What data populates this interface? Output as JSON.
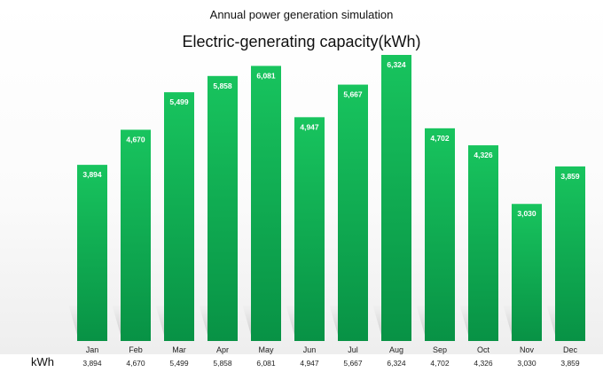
{
  "chart_data": {
    "type": "bar",
    "suptitle": "Annual power generation simulation",
    "title": "Electric-generating capacity(kWh)",
    "categories": [
      "Jan",
      "Feb",
      "Mar",
      "Apr",
      "May",
      "Jun",
      "Jul",
      "Aug",
      "Sep",
      "Oct",
      "Nov",
      "Dec"
    ],
    "values": [
      3894,
      4670,
      5499,
      5858,
      6081,
      4947,
      5667,
      6324,
      4702,
      4326,
      3030,
      3859
    ],
    "value_labels": [
      "3,894",
      "4,670",
      "5,499",
      "5,858",
      "6,081",
      "4,947",
      "5,667",
      "6,324",
      "4,702",
      "4,326",
      "3,030",
      "3,859"
    ],
    "table_unit": "kWh",
    "ylim": [
      0,
      6500
    ],
    "grid": false,
    "colors": {
      "bar_top": "#18c45e",
      "bar_bottom": "#089245",
      "value_text": "#ffffff"
    }
  }
}
